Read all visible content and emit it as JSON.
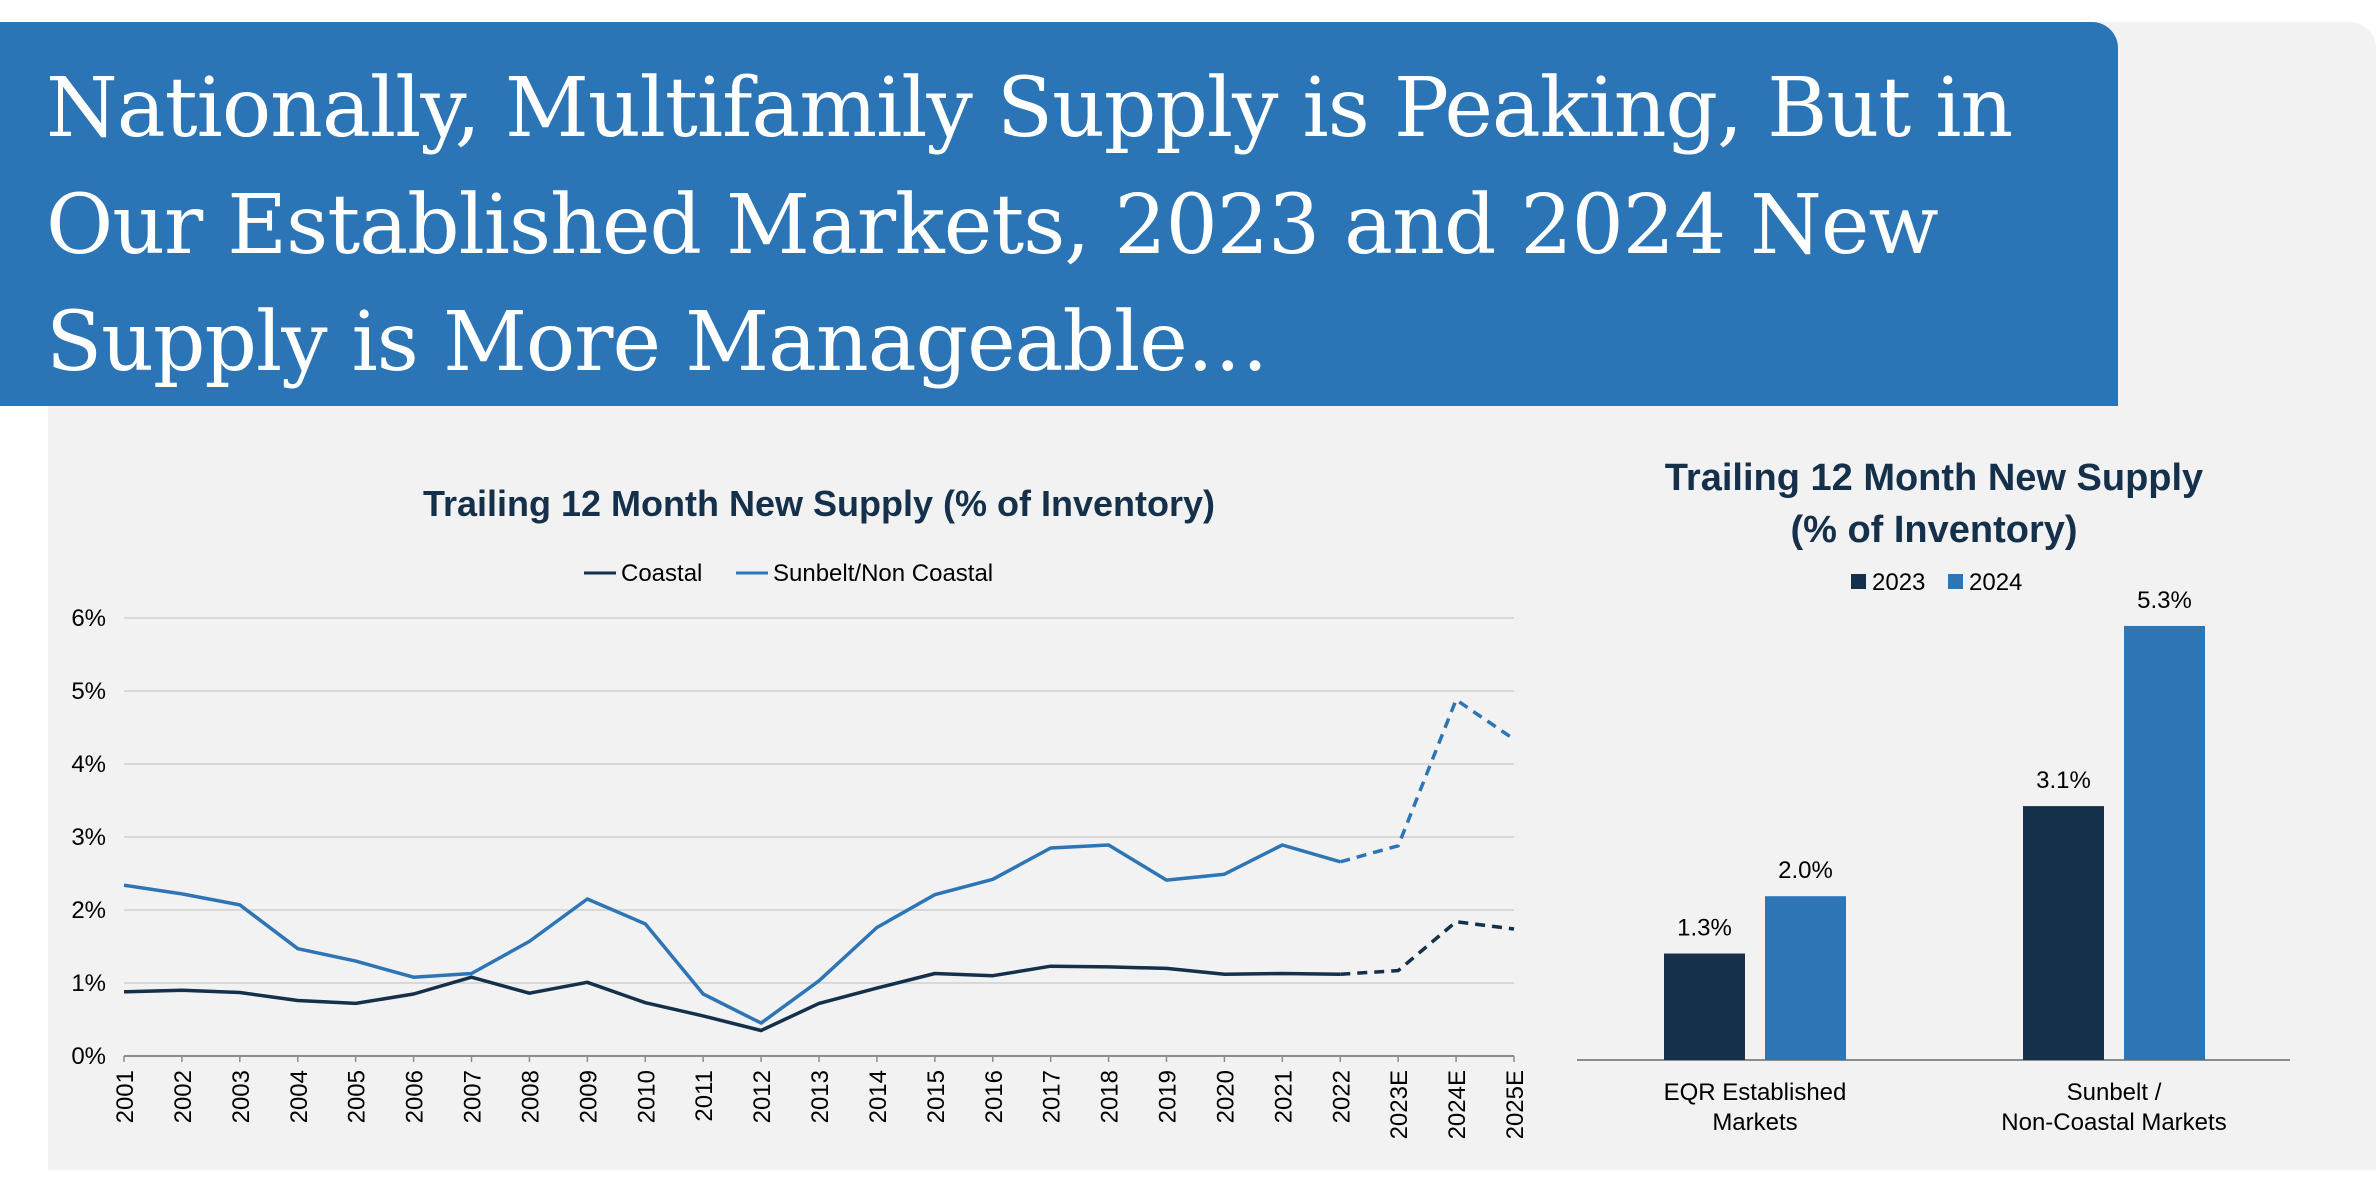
{
  "header": {
    "title": "Nationally, Multifamily Supply is Peaking, But in Our Established Markets, 2023 and 2024 New Supply is More Manageable…"
  },
  "colors": {
    "banner": "#2b74b5",
    "panel": "#f2f2f2",
    "coastal": "#14304a",
    "sunbelt": "#2e75b6",
    "bar2023": "#14304a",
    "bar2024": "#2e75b6"
  },
  "chart_data": [
    {
      "type": "line",
      "title": "Trailing 12 Month New Supply (% of Inventory)",
      "xlabel": "",
      "ylabel": "",
      "x": [
        "2001",
        "2002",
        "2003",
        "2004",
        "2005",
        "2006",
        "2007",
        "2008",
        "2009",
        "2010",
        "2011",
        "2012",
        "2013",
        "2014",
        "2015",
        "2016",
        "2017",
        "2018",
        "2019",
        "2020",
        "2021",
        "2022",
        "2023E",
        "2024E",
        "2025E"
      ],
      "ylim": [
        0,
        6
      ],
      "yticks": [
        "0%",
        "1%",
        "2%",
        "3%",
        "4%",
        "5%",
        "6%"
      ],
      "grid": true,
      "legend_position": "top-center",
      "estimate_start_index": 21,
      "series": [
        {
          "name": "Coastal",
          "values": [
            0.88,
            0.9,
            0.87,
            0.76,
            0.72,
            0.85,
            1.08,
            0.86,
            1.01,
            0.73,
            0.55,
            0.35,
            0.72,
            0.93,
            1.13,
            1.1,
            1.23,
            1.22,
            1.2,
            1.12,
            1.13,
            1.12,
            1.17,
            1.84,
            1.74
          ]
        },
        {
          "name": "Sunbelt/Non Coastal",
          "values": [
            2.34,
            2.22,
            2.07,
            1.47,
            1.3,
            1.08,
            1.13,
            1.57,
            2.15,
            1.81,
            0.85,
            0.45,
            1.03,
            1.76,
            2.21,
            2.42,
            2.85,
            2.89,
            2.41,
            2.49,
            2.89,
            2.66,
            2.88,
            4.88,
            4.34
          ]
        }
      ]
    },
    {
      "type": "bar",
      "title": [
        "Trailing 12 Month New Supply",
        "(% of Inventory)"
      ],
      "xlabel": "",
      "ylabel": "",
      "categories": [
        [
          "EQR Established",
          "Markets"
        ],
        [
          "Sunbelt /",
          "Non-Coastal Markets"
        ]
      ],
      "ylim": [
        0,
        5.8
      ],
      "legend_position": "top-center",
      "series": [
        {
          "name": "2023",
          "values": [
            1.3,
            3.1
          ],
          "labels": [
            "1.3%",
            "3.1%"
          ]
        },
        {
          "name": "2024",
          "values": [
            2.0,
            5.3
          ],
          "labels": [
            "2.0%",
            "5.3%"
          ]
        }
      ]
    }
  ]
}
